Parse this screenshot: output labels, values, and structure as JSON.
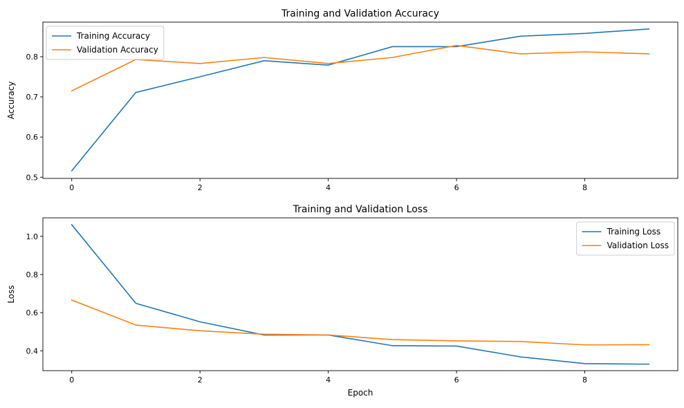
{
  "chart_data": [
    {
      "type": "line",
      "title": "Training and Validation Accuracy",
      "xlabel": "",
      "ylabel": "Accuracy",
      "xlim": [
        -0.45,
        9.45
      ],
      "ylim": [
        0.497,
        0.886
      ],
      "xticks": [
        0,
        2,
        4,
        6,
        8
      ],
      "yticks": [
        0.5,
        0.6,
        0.7,
        0.8
      ],
      "x": [
        0,
        1,
        2,
        3,
        4,
        5,
        6,
        7,
        8,
        9
      ],
      "grid": false,
      "legend_position": "upper-left",
      "series": [
        {
          "name": "Training Accuracy",
          "color": "#1f77b4",
          "values": [
            0.516,
            0.711,
            0.75,
            0.79,
            0.779,
            0.825,
            0.825,
            0.851,
            0.858,
            0.869
          ]
        },
        {
          "name": "Validation Accuracy",
          "color": "#ff7f0e",
          "values": [
            0.715,
            0.793,
            0.783,
            0.798,
            0.783,
            0.798,
            0.828,
            0.807,
            0.812,
            0.807
          ]
        }
      ]
    },
    {
      "type": "line",
      "title": "Training and Validation Loss",
      "xlabel": "Epoch",
      "ylabel": "Loss",
      "xlim": [
        -0.45,
        9.45
      ],
      "ylim": [
        0.296,
        1.097
      ],
      "xticks": [
        0,
        2,
        4,
        6,
        8
      ],
      "yticks": [
        0.4,
        0.6,
        0.8,
        1.0
      ],
      "x": [
        0,
        1,
        2,
        3,
        4,
        5,
        6,
        7,
        8,
        9
      ],
      "grid": false,
      "legend_position": "upper-right",
      "series": [
        {
          "name": "Training Loss",
          "color": "#1f77b4",
          "values": [
            1.061,
            0.649,
            0.552,
            0.483,
            0.483,
            0.427,
            0.425,
            0.368,
            0.333,
            0.33
          ]
        },
        {
          "name": "Validation Loss",
          "color": "#ff7f0e",
          "values": [
            0.666,
            0.535,
            0.505,
            0.487,
            0.483,
            0.459,
            0.452,
            0.449,
            0.431,
            0.432
          ]
        }
      ]
    }
  ]
}
